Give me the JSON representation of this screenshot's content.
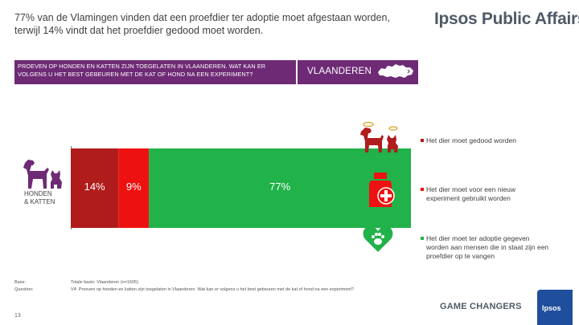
{
  "headline": {
    "line1": "77% van de Vlamingen vinden dat een proefdier ter adoptie moet afgestaan worden,",
    "line2": "terwijl 14% vindt dat het proefdier gedood moet worden."
  },
  "brand": "Ipsos Public Affairs",
  "question": {
    "line1": "PROEVEN OP HONDEN EN KATTEN ZIJN TOEGELATEN IN VLAANDEREN. WAT KAN ER",
    "line2": "VOLGENS U HET BEST GEBEUREN MET DE KAT OF HOND NA EEN EXPERIMENT?"
  },
  "region": "VLAANDEREN",
  "row": {
    "label_line1": "HONDEN",
    "label_line2": "& KATTEN",
    "icon": "dog-cat-icon"
  },
  "chart_data": {
    "type": "bar",
    "orientation": "horizontal-stacked",
    "categories": [
      "HONDEN & KATTEN"
    ],
    "series": [
      {
        "name": "Het dier moet gedood worden",
        "values": [
          14
        ],
        "color": "#b01c1c",
        "label": "14%"
      },
      {
        "name": "Het dier moet voor een nieuw experiment gebruikt worden",
        "values": [
          9
        ],
        "color": "#ee1111",
        "label": "9%"
      },
      {
        "name": "Het dier moet ter adoptie gegeven worden aan mensen die in staat zijn een proefdier op te vangen",
        "values": [
          77
        ],
        "color": "#21b24a",
        "label": "77%"
      }
    ],
    "xlim": [
      0,
      100
    ]
  },
  "legend": [
    {
      "line1": "Het dier moet gedood worden",
      "line2": "",
      "line3": "",
      "icon": "angel-dog-cat-icon",
      "icon_color": "#b01c1c"
    },
    {
      "line1": "Het dier moet voor een nieuw",
      "line2": "experiment gebruikt worden",
      "line3": "",
      "icon": "medicine-bottle-icon",
      "icon_color": "#ee1111"
    },
    {
      "line1": "Het dier moet ter adoptie gegeven",
      "line2": "worden aan mensen die in staat zijn een",
      "line3": "proefdier op te vangen",
      "icon": "heart-paw-icon",
      "icon_color": "#21b24a"
    }
  ],
  "footnote": {
    "base_label": "Base:",
    "question_label": "Question:",
    "base_text": "Totale basis: Vlaanderen (n=1505)",
    "question_text": "V4: Proeven op honden en katten zijn toegelaten in Vlaanderen. Wat kan er volgens u het best gebeuren met de kat of hond na een experiment?"
  },
  "page_number": "13",
  "tagline": "GAME CHANGERS",
  "logo": "Ipsos",
  "colors": {
    "purple": "#6e2a75",
    "dark_red": "#b01c1c",
    "red": "#ee1111",
    "green": "#21b24a"
  }
}
